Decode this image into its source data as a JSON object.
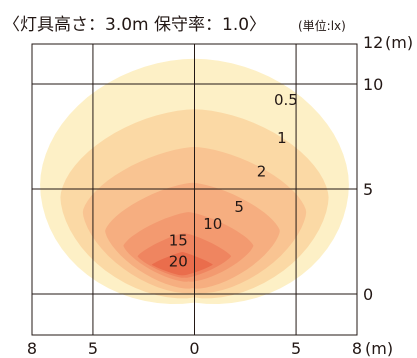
{
  "chart_data": {
    "type": "contour",
    "title": "〈灯具高さ：3.0m 保守率：1.0〉",
    "unit_label": "(単位:lx)",
    "x_ticks": [
      "8",
      "5",
      "0",
      "5",
      "8"
    ],
    "x_unit": "(m)",
    "y_ticks": [
      "12",
      "10",
      "5",
      "0"
    ],
    "y_unit": "(m)",
    "xlim": [
      -8,
      8
    ],
    "ylim": [
      -1.7,
      12
    ],
    "grid": true,
    "levels": [
      {
        "value": 0.5,
        "label": "0.5",
        "label_x": 4.5,
        "label_y": 9.0
      },
      {
        "value": 1,
        "label": "1",
        "label_x": 4.3,
        "label_y": 7.2
      },
      {
        "value": 2,
        "label": "2",
        "label_x": 3.3,
        "label_y": 5.6
      },
      {
        "value": 5,
        "label": "5",
        "label_x": 2.2,
        "label_y": 3.9
      },
      {
        "value": 10,
        "label": "10",
        "label_x": 0.9,
        "label_y": 3.1
      },
      {
        "value": 15,
        "label": "15",
        "label_x": -0.8,
        "label_y": 2.3
      },
      {
        "value": 20,
        "label": "20",
        "label_x": -0.8,
        "label_y": 1.3
      }
    ],
    "colors": {
      "level_0_5": "#fdf0c6",
      "level_1": "#fbd9a5",
      "level_2": "#f9c492",
      "level_5": "#f6ae80",
      "level_10": "#f39a70",
      "level_15": "#ef8560",
      "level_20": "#ea6d4c",
      "grid": "#231815"
    }
  }
}
